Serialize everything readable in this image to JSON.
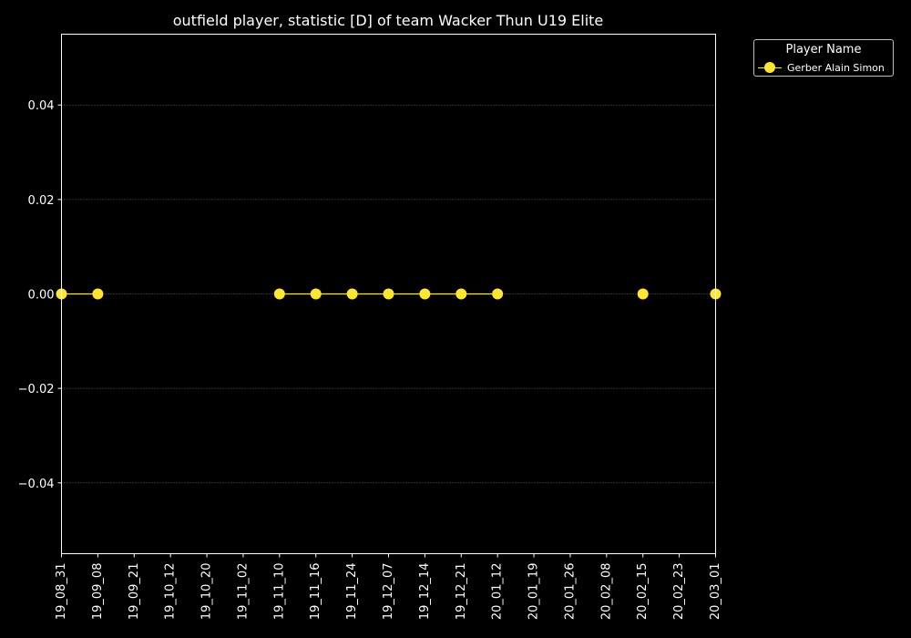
{
  "colors": {
    "background": "#000000",
    "axis": "#ffffff",
    "grid": "#808080",
    "series": "#ffe632"
  },
  "chart_data": {
    "type": "line",
    "title": "outfield player, statistic [D] of team Wacker Thun U19 Elite",
    "xlabel": "",
    "ylabel": "",
    "x_ticks": [
      "19_08_31",
      "19_09_08",
      "19_09_21",
      "19_10_12",
      "19_10_20",
      "19_11_02",
      "19_11_10",
      "19_11_16",
      "19_11_24",
      "19_12_07",
      "19_12_14",
      "19_12_21",
      "20_01_12",
      "20_01_19",
      "20_01_26",
      "20_02_08",
      "20_02_15",
      "20_02_23",
      "20_03_01"
    ],
    "y_ticks": [
      "−0.04",
      "−0.02",
      "0.00",
      "0.02",
      "0.04"
    ],
    "ylim": [
      -0.055,
      0.055
    ],
    "grid": "horizontal dotted",
    "legend": {
      "title": "Player Name",
      "placement": "outside top-right"
    },
    "series": [
      {
        "name": "Gerber Alain Simon",
        "x": [
          "19_08_31",
          "19_09_08",
          "19_11_10",
          "19_11_16",
          "19_11_24",
          "19_12_07",
          "19_12_14",
          "19_12_21",
          "20_01_12",
          "20_02_15",
          "20_03_01"
        ],
        "y": [
          0,
          0,
          0,
          0,
          0,
          0,
          0,
          0,
          0,
          0,
          0
        ]
      }
    ]
  }
}
